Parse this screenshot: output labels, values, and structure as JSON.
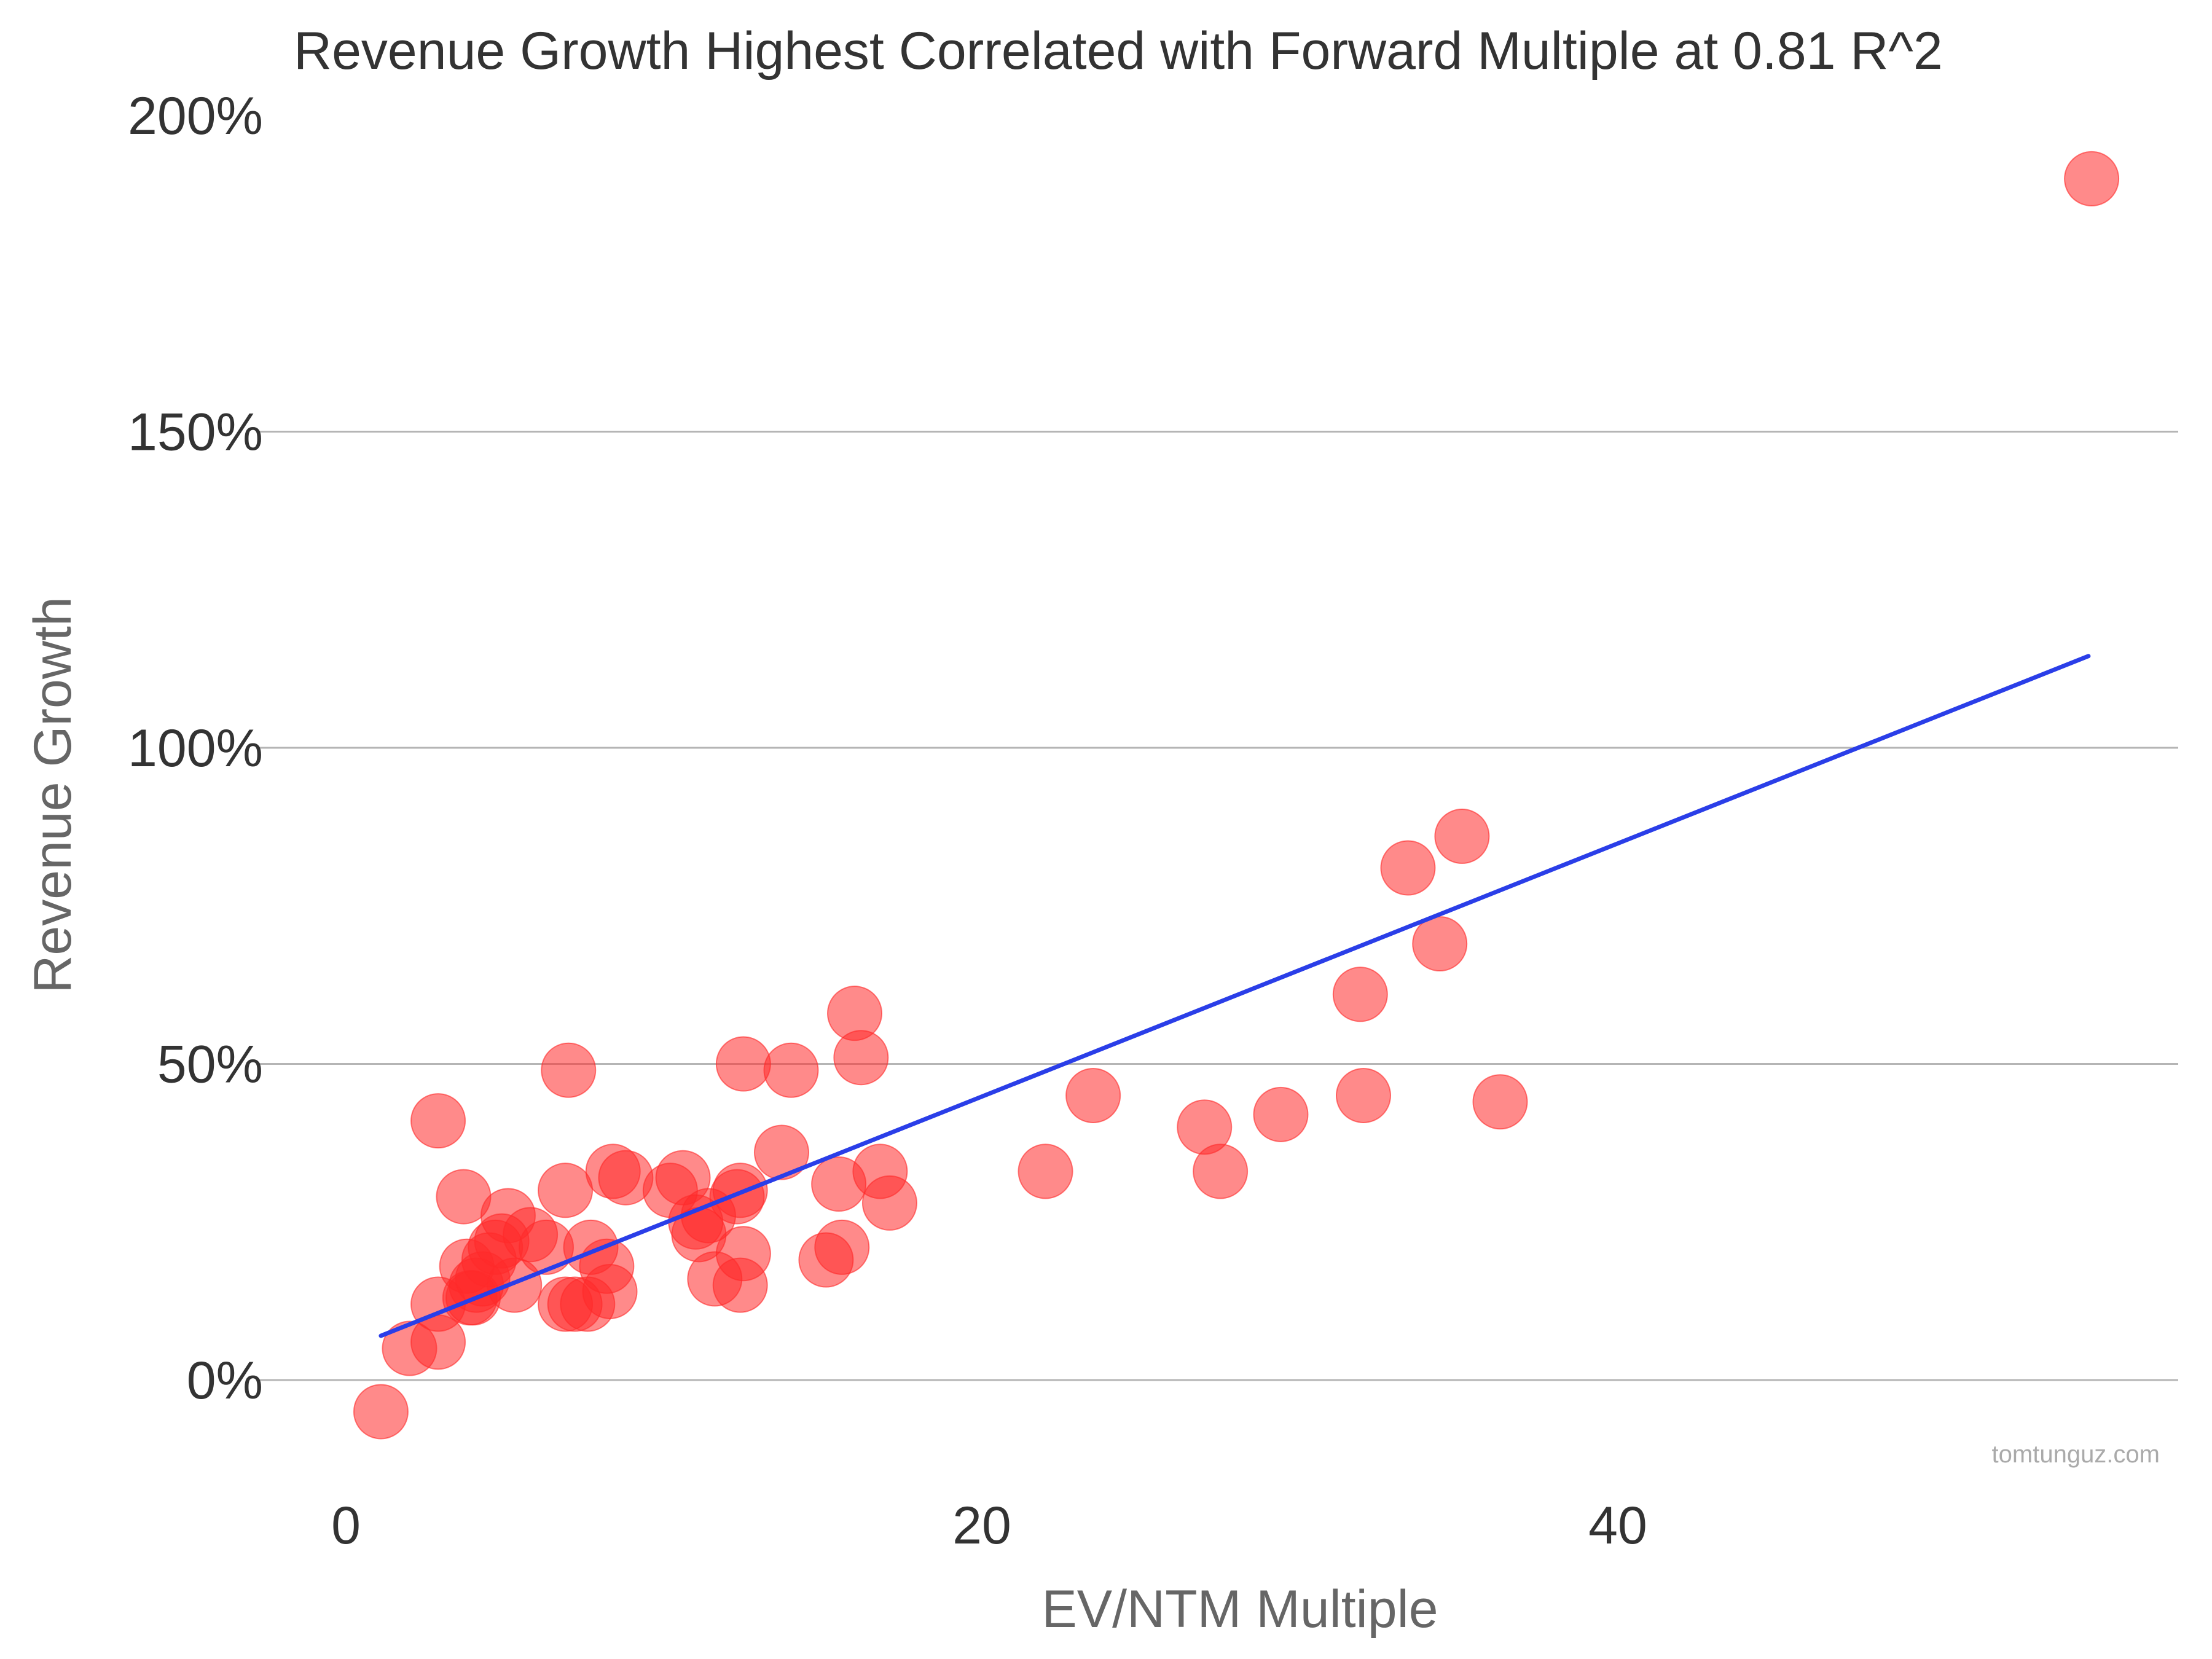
{
  "chart_data": {
    "type": "scatter",
    "title": "Revenue Growth Highest Correlated with Forward Multiple at 0.81 R^2",
    "xlabel": "EV/NTM Multiple",
    "ylabel": "Revenue Growth",
    "xlim": [
      0,
      57
    ],
    "ylim": [
      -0.15,
      2.05
    ],
    "x_ticks": [
      {
        "value": 0,
        "label": "0"
      },
      {
        "value": 20,
        "label": "20"
      },
      {
        "value": 40,
        "label": "40"
      }
    ],
    "y_ticks": [
      {
        "value": 0,
        "label": "0%"
      },
      {
        "value": 0.5,
        "label": "50%"
      },
      {
        "value": 1.0,
        "label": "100%"
      },
      {
        "value": 1.5,
        "label": "150%"
      },
      {
        "value": 2.0,
        "label": "200%"
      }
    ],
    "grid": true,
    "point_color": "#ff2a2a",
    "trend_color": "#2a3ee8",
    "points": [
      [
        1.1,
        -0.05
      ],
      [
        2.0,
        0.05
      ],
      [
        2.9,
        0.06
      ],
      [
        2.9,
        0.12
      ],
      [
        2.9,
        0.41
      ],
      [
        3.7,
        0.29
      ],
      [
        3.8,
        0.18
      ],
      [
        3.9,
        0.13
      ],
      [
        4.0,
        0.13
      ],
      [
        4.1,
        0.15
      ],
      [
        4.3,
        0.16
      ],
      [
        4.5,
        0.19
      ],
      [
        4.7,
        0.21
      ],
      [
        4.9,
        0.22
      ],
      [
        5.1,
        0.26
      ],
      [
        5.3,
        0.15
      ],
      [
        5.8,
        0.23
      ],
      [
        6.3,
        0.21
      ],
      [
        6.9,
        0.3
      ],
      [
        7.0,
        0.49
      ],
      [
        6.9,
        0.12
      ],
      [
        7.2,
        0.12
      ],
      [
        7.6,
        0.12
      ],
      [
        7.7,
        0.21
      ],
      [
        8.2,
        0.18
      ],
      [
        8.3,
        0.14
      ],
      [
        8.4,
        0.33
      ],
      [
        8.8,
        0.32
      ],
      [
        10.2,
        0.3
      ],
      [
        10.6,
        0.32
      ],
      [
        11.0,
        0.25
      ],
      [
        11.1,
        0.23
      ],
      [
        11.4,
        0.26
      ],
      [
        11.6,
        0.16
      ],
      [
        12.3,
        0.29
      ],
      [
        12.4,
        0.3
      ],
      [
        12.5,
        0.2
      ],
      [
        12.4,
        0.15
      ],
      [
        12.5,
        0.5
      ],
      [
        13.7,
        0.36
      ],
      [
        14.0,
        0.49
      ],
      [
        15.1,
        0.19
      ],
      [
        15.5,
        0.31
      ],
      [
        15.6,
        0.21
      ],
      [
        16.0,
        0.58
      ],
      [
        16.2,
        0.51
      ],
      [
        16.8,
        0.33
      ],
      [
        17.1,
        0.28
      ],
      [
        22.0,
        0.33
      ],
      [
        23.5,
        0.45
      ],
      [
        27.0,
        0.4
      ],
      [
        27.5,
        0.33
      ],
      [
        29.4,
        0.42
      ],
      [
        31.9,
        0.61
      ],
      [
        32.0,
        0.45
      ],
      [
        33.4,
        0.81
      ],
      [
        34.4,
        0.69
      ],
      [
        35.1,
        0.86
      ],
      [
        36.3,
        0.44
      ],
      [
        54.9,
        1.9
      ]
    ],
    "trendline": {
      "x": [
        1.1,
        54.8
      ],
      "y": [
        0.07,
        1.145
      ]
    },
    "source": "tomtunguz.com"
  }
}
